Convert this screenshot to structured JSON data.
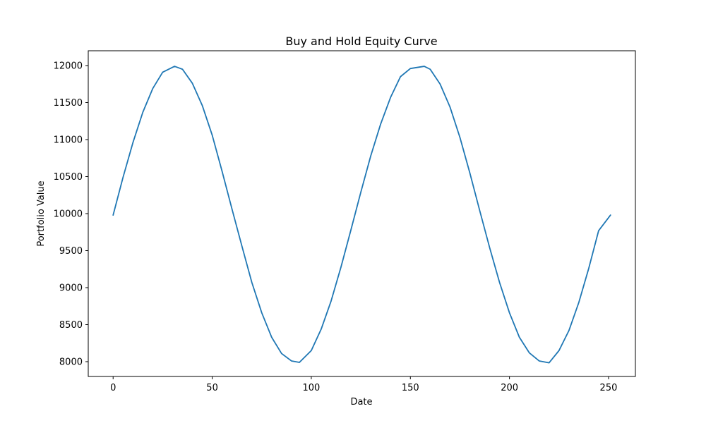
{
  "chart_data": {
    "type": "line",
    "title": "Buy and Hold Equity Curve",
    "xlabel": "Date",
    "ylabel": "Portfolio Value",
    "xlim": [
      -12.55,
      263.55
    ],
    "ylim": [
      7800,
      12200
    ],
    "xticks": [
      0,
      50,
      100,
      150,
      200,
      250
    ],
    "yticks": [
      8000,
      8500,
      9000,
      9500,
      10000,
      10500,
      11000,
      11500,
      12000
    ],
    "grid": false,
    "legend": "none",
    "series": [
      {
        "color": "#1f77b4",
        "x": [
          0,
          5,
          10,
          15,
          20,
          25,
          31,
          35,
          40,
          45,
          50,
          55,
          60,
          65,
          70,
          75,
          80,
          85,
          90,
          94,
          100,
          105,
          110,
          115,
          120,
          125,
          130,
          135,
          140,
          145,
          150,
          157,
          160,
          165,
          170,
          175,
          180,
          185,
          190,
          195,
          200,
          205,
          210,
          215,
          220,
          225,
          230,
          235,
          240,
          245,
          251
        ],
        "y": [
          9980,
          10490,
          10960,
          11370,
          11690,
          11910,
          11990,
          11950,
          11760,
          11460,
          11060,
          10570,
          10060,
          9560,
          9070,
          8660,
          8330,
          8110,
          8010,
          7990,
          8150,
          8440,
          8820,
          9280,
          9780,
          10290,
          10780,
          11210,
          11570,
          11850,
          11960,
          11990,
          11950,
          11750,
          11440,
          11030,
          10550,
          10040,
          9540,
          9070,
          8660,
          8330,
          8120,
          8010,
          7985,
          8150,
          8420,
          8800,
          9260,
          9770,
          9980
        ]
      }
    ]
  }
}
